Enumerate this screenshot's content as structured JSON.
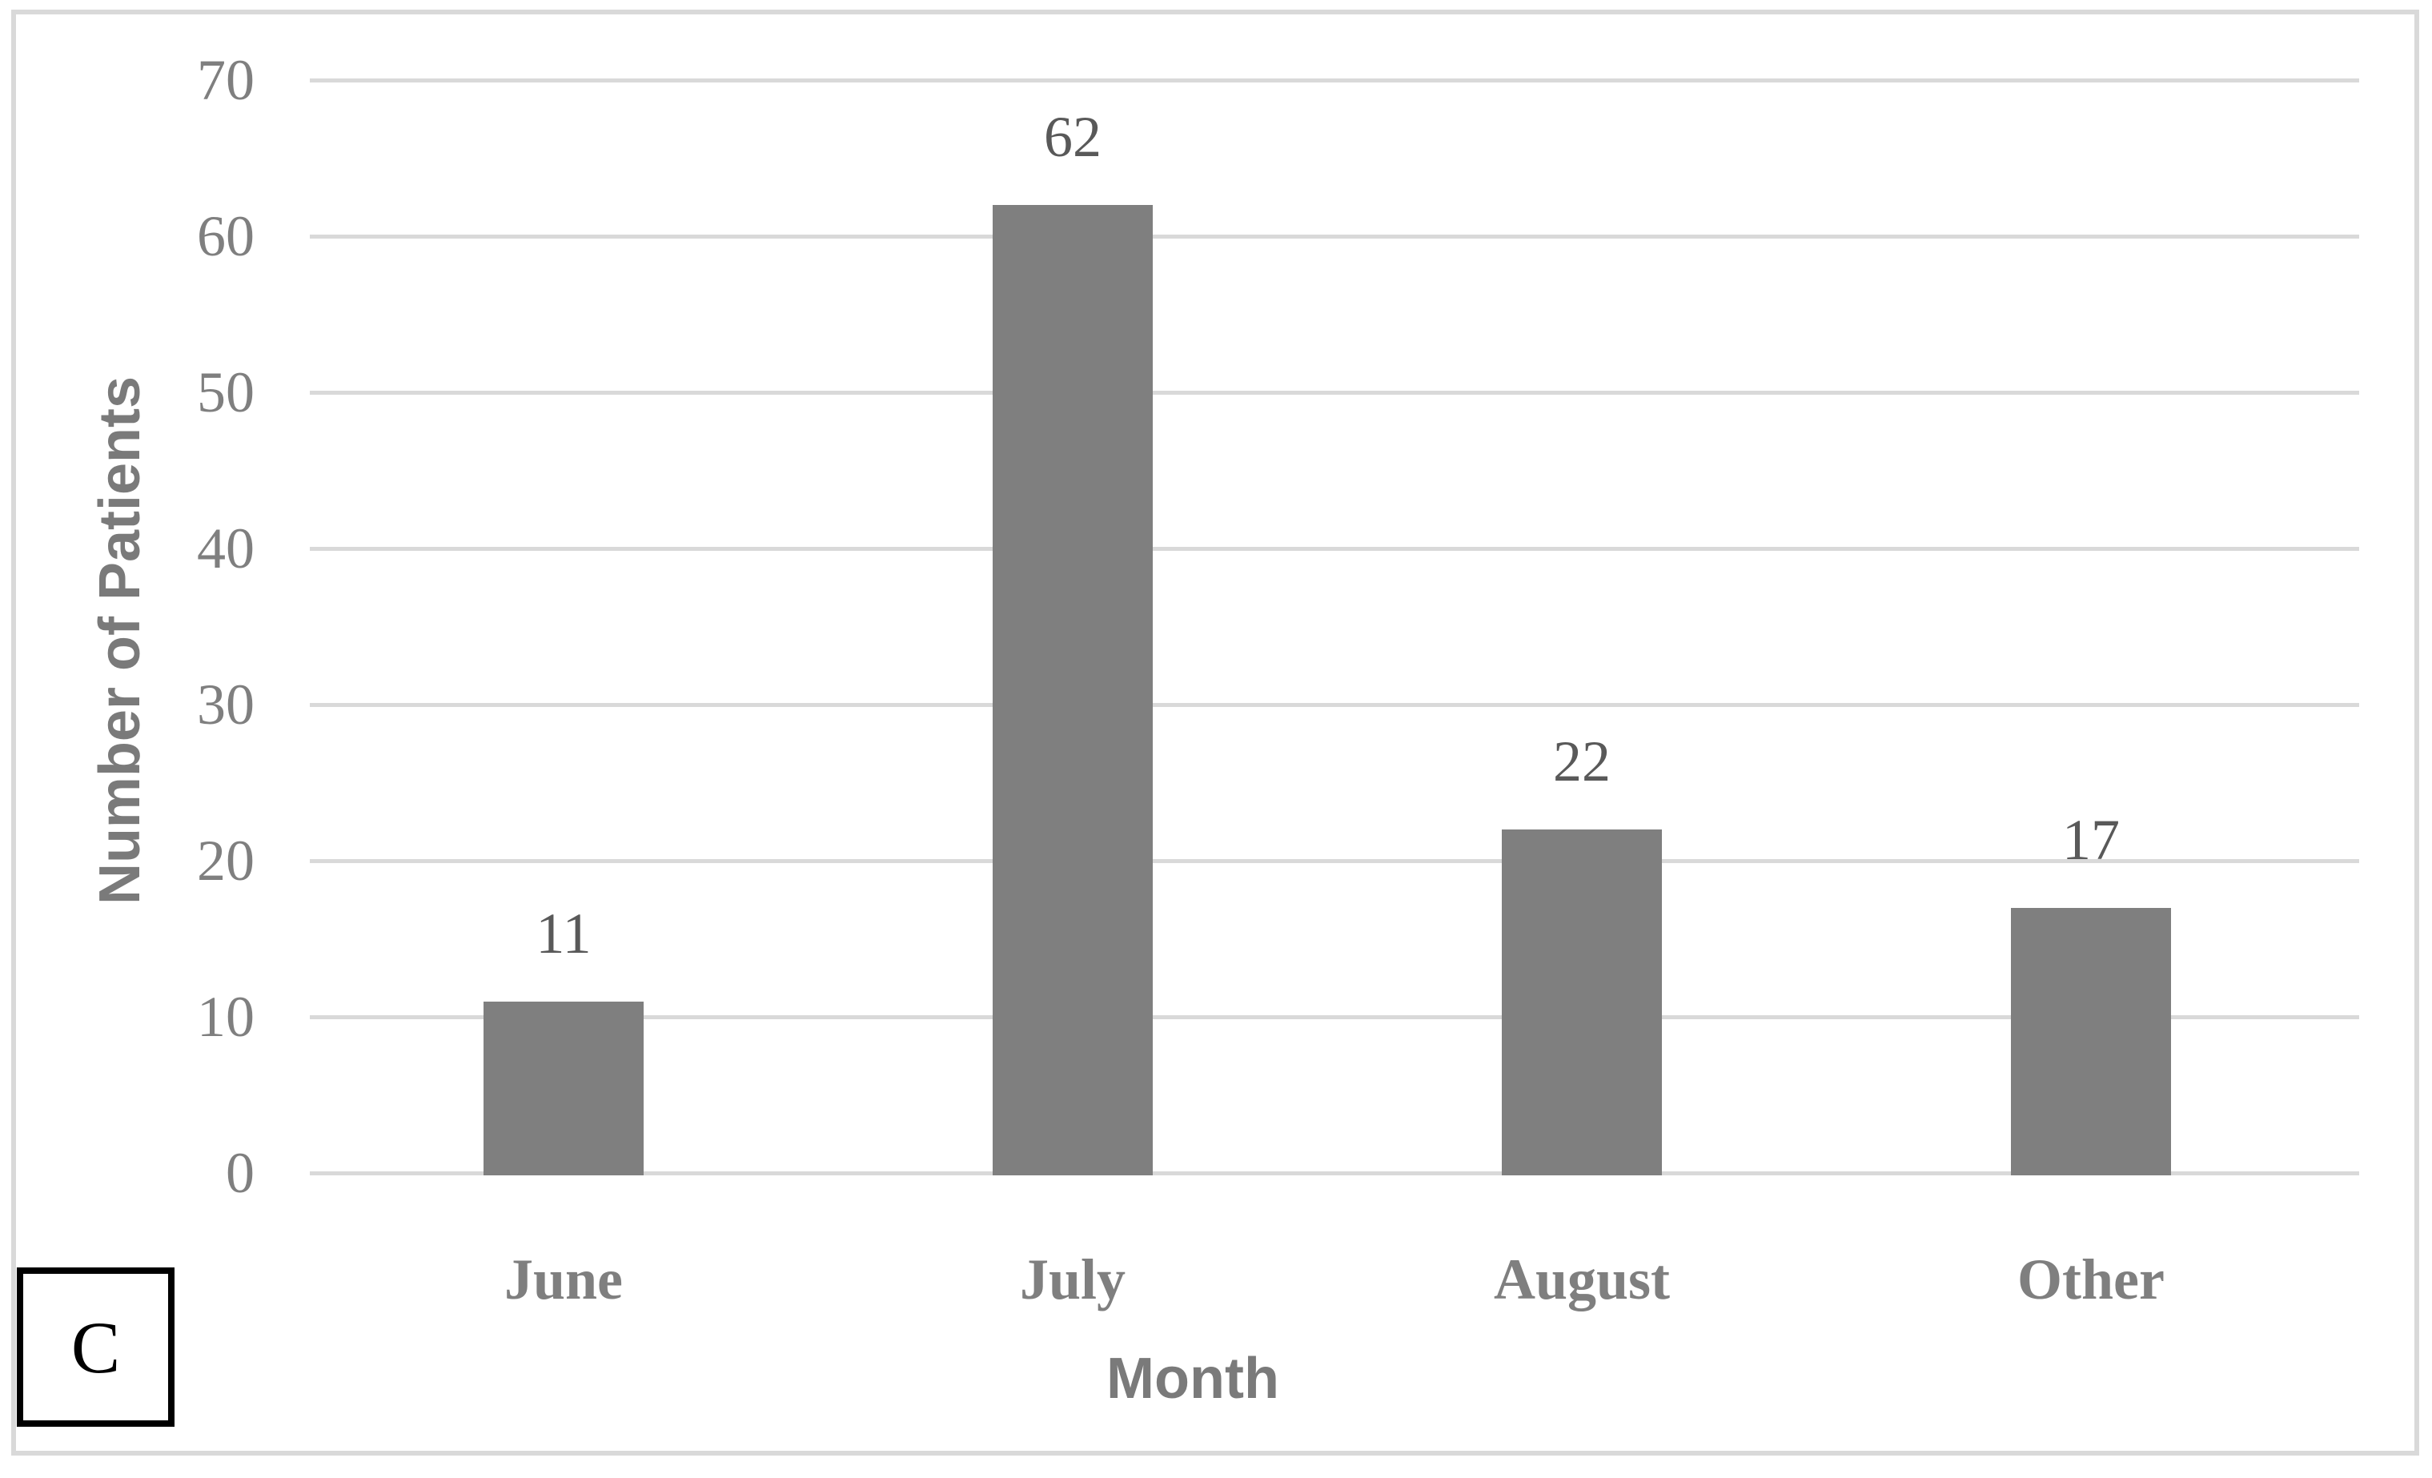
{
  "panel": {
    "label": "C"
  },
  "chart_data": {
    "type": "bar",
    "title": "",
    "categories": [
      "June",
      "July",
      "August",
      "Other"
    ],
    "values": [
      11,
      62,
      22,
      17
    ],
    "data_labels": [
      "11",
      "62",
      "22",
      "17"
    ],
    "xlabel": "Month",
    "ylabel": "Number of Patients",
    "ylim": [
      0,
      70
    ],
    "ytick_step": 10,
    "yticks": [
      0,
      10,
      20,
      30,
      40,
      50,
      60,
      70
    ],
    "grid": "horizontal",
    "legend": "none",
    "colors": {
      "bar": "#7f7f7f",
      "gridline": "#d9d9d9",
      "axis_tick_text": "#7f7f7f",
      "category_text": "#7f7f7f",
      "data_label_text": "#595959",
      "axis_title_text": "#7a7a7a",
      "frame_border": "#d9d9d9",
      "panel_border": "#000000",
      "background": "#ffffff"
    }
  }
}
